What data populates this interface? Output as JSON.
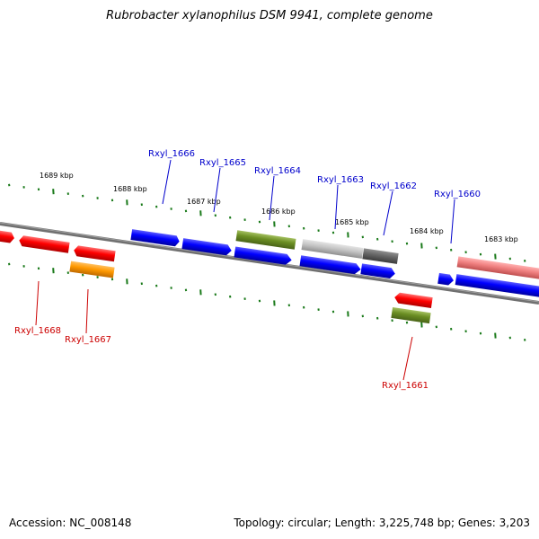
{
  "title": "Rubrobacter xylanophilus DSM 9941, complete genome",
  "footer": {
    "accession": "Accession: NC_008148",
    "summary": "Topology: circular; Length: 3,225,748 bp; Genes: 3,203"
  },
  "colors": {
    "tick": "#1a7a1a",
    "backbone": "#707070",
    "label_forward": "#0000cc",
    "label_reverse": "#cc0000"
  },
  "kbp_labels": [
    {
      "text": "1689 kbp"
    },
    {
      "text": "1688 kbp"
    },
    {
      "text": "1687 kbp"
    },
    {
      "text": "1686 kbp"
    },
    {
      "text": "1685 kbp"
    },
    {
      "text": "1684 kbp"
    },
    {
      "text": "1683 kbp"
    }
  ],
  "gene_labels": [
    {
      "text": "Rxyl_1666",
      "strand": "forward"
    },
    {
      "text": "Rxyl_1665",
      "strand": "forward"
    },
    {
      "text": "Rxyl_1664",
      "strand": "forward"
    },
    {
      "text": "Rxyl_1663",
      "strand": "forward"
    },
    {
      "text": "Rxyl_1662",
      "strand": "forward"
    },
    {
      "text": "Rxyl_1660",
      "strand": "forward"
    },
    {
      "text": "Rxyl_1668",
      "strand": "reverse"
    },
    {
      "text": "Rxyl_1667",
      "strand": "reverse"
    },
    {
      "text": "Rxyl_1661",
      "strand": "reverse"
    }
  ]
}
